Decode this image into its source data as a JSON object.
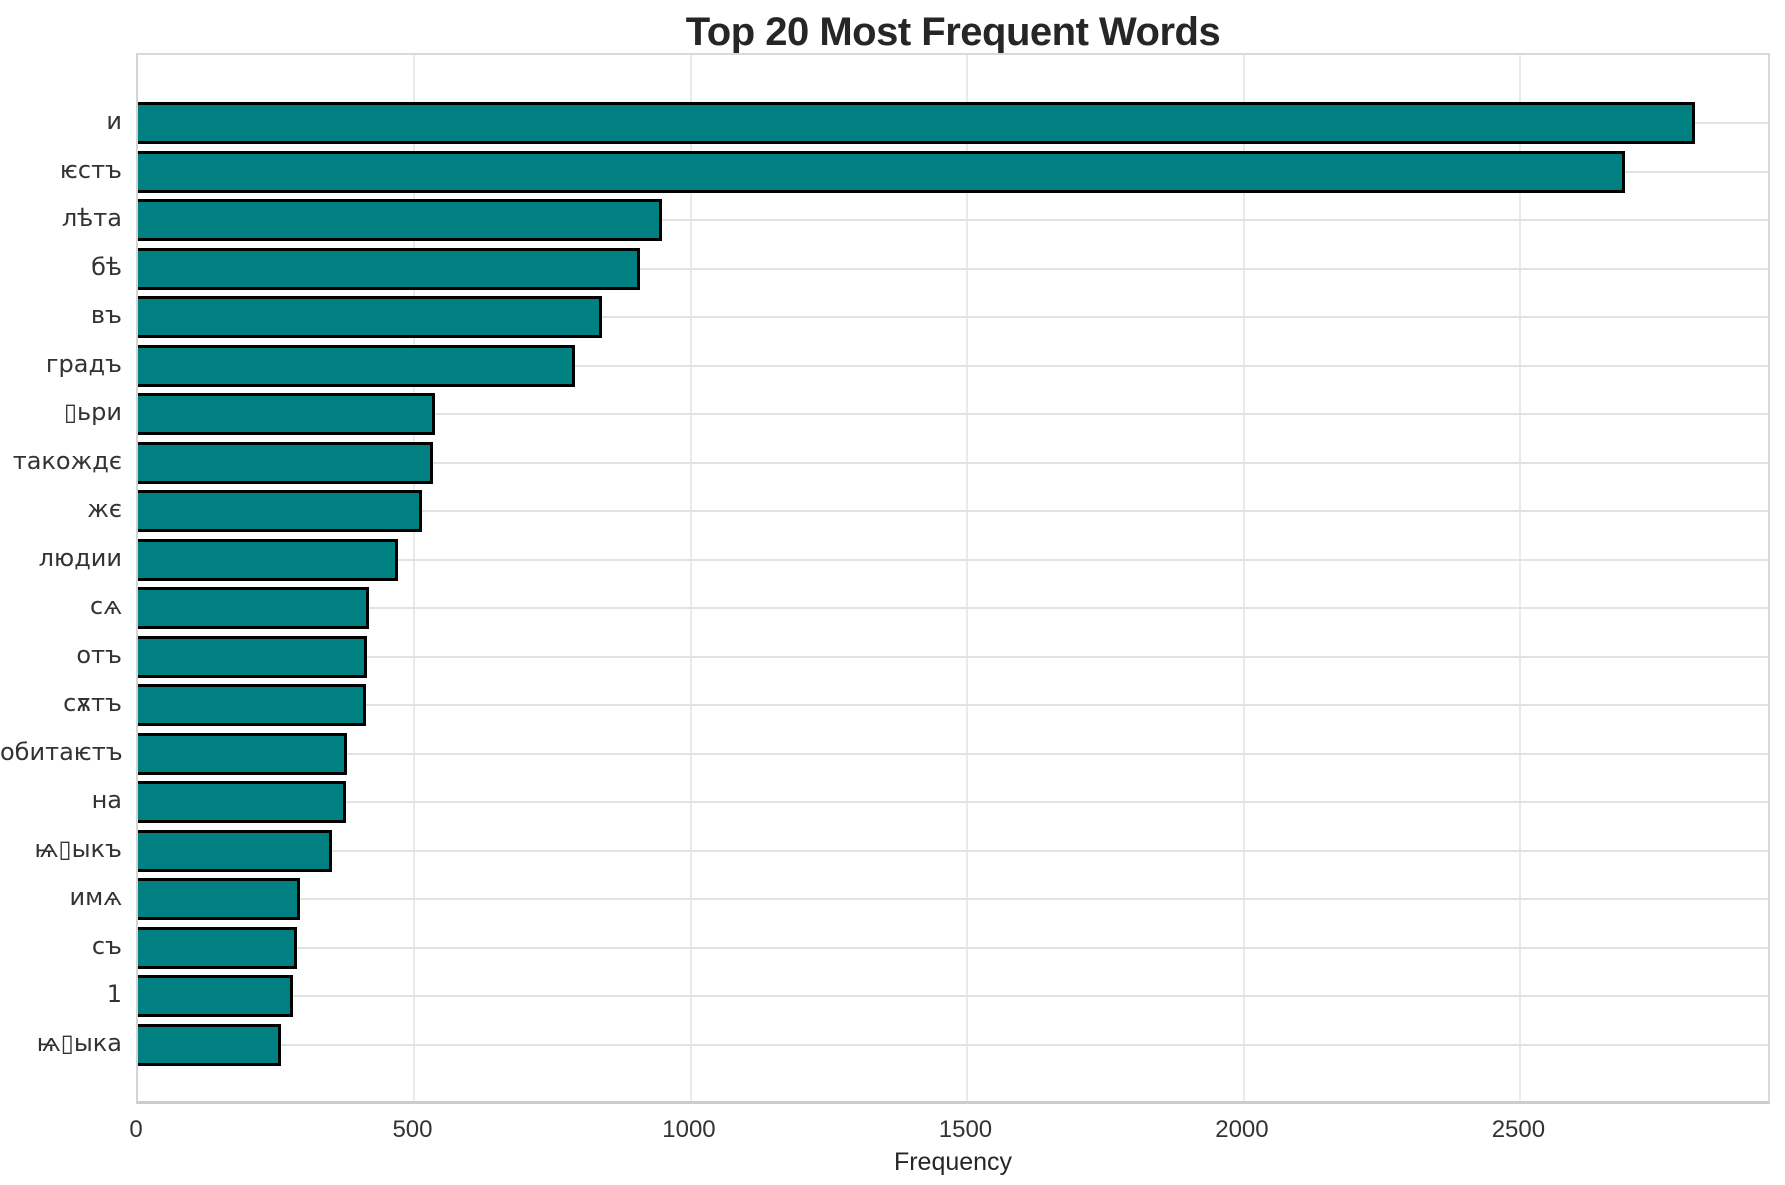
{
  "chart_data": {
    "type": "bar",
    "orientation": "horizontal",
    "title": "Top 20 Most Frequent Words",
    "xlabel": "Frequency",
    "ylabel": "",
    "categories": [
      "и",
      "ѥстъ",
      "лѣта",
      "бѣ",
      "въ",
      "градъ",
      "▯ьри",
      "такождє",
      "жє",
      "людии",
      "сѧ",
      "отъ",
      "сѫтъ",
      "обитаѥтъ",
      "на",
      "ѩ▯ыкъ",
      "имѧ",
      "съ",
      "1",
      "ѩ▯ыка"
    ],
    "values": [
      2815,
      2690,
      948,
      908,
      840,
      790,
      537,
      533,
      513,
      471,
      418,
      415,
      412,
      378,
      377,
      350,
      293,
      288,
      281,
      259
    ],
    "x_ticks": [
      0,
      500,
      1000,
      1500,
      2000,
      2500
    ],
    "xlim": [
      0,
      2955
    ],
    "grid": true,
    "legend": "none",
    "bar_color": "#008080",
    "bar_edge_color": "#000000",
    "grid_color": "#e2e2e2",
    "background_color": "#ffffff"
  }
}
